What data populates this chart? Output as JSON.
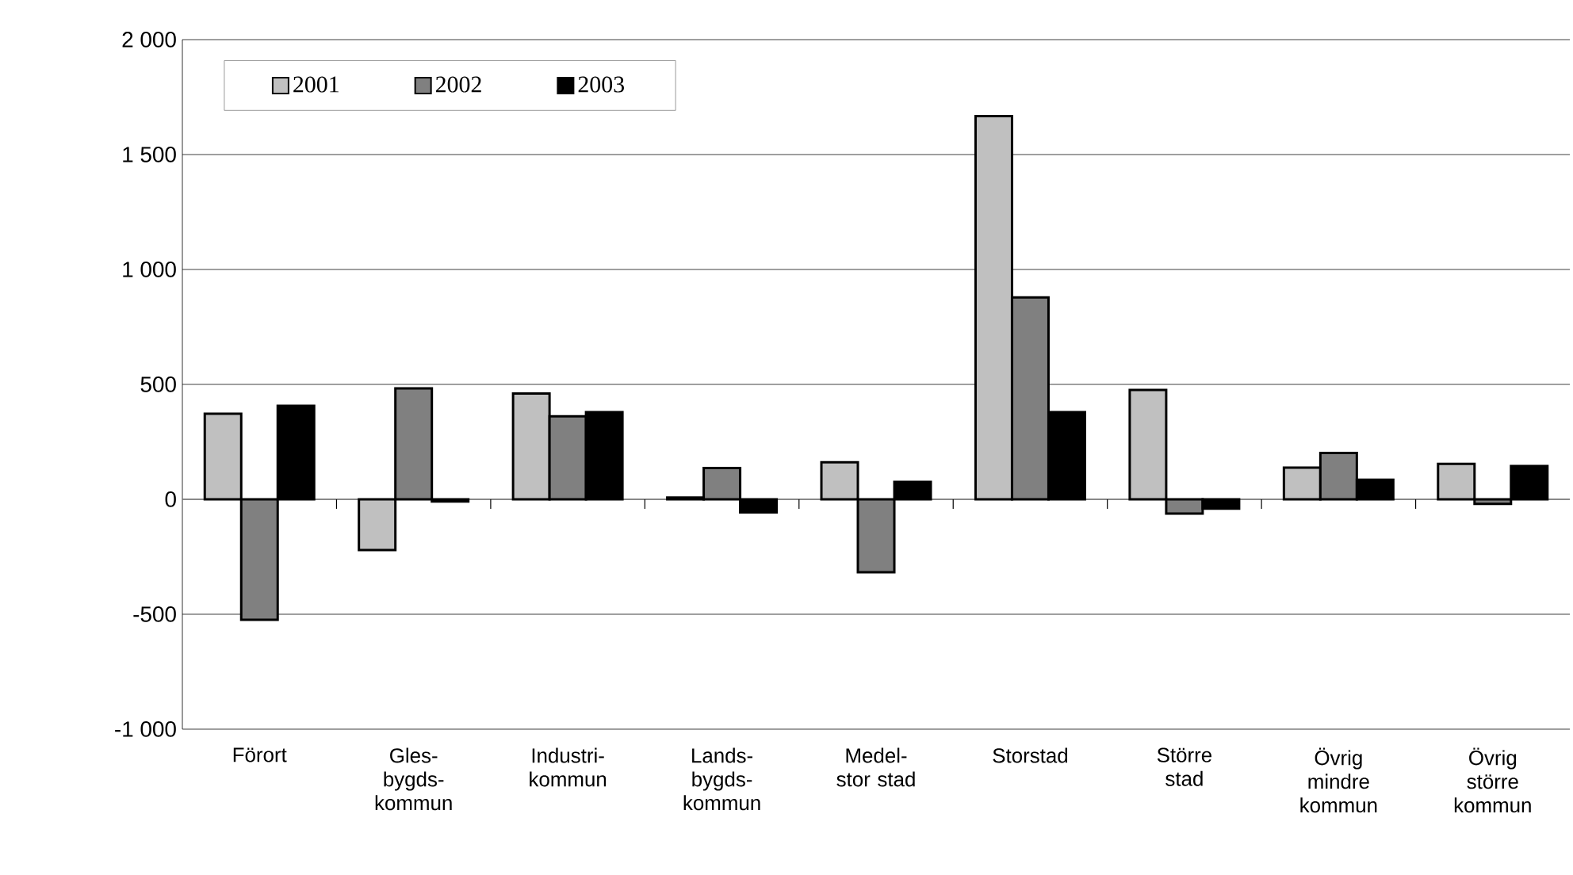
{
  "chart_data": {
    "type": "bar",
    "categories": [
      "Förort",
      "Gles- bygds- kommun",
      "Industri- kommun",
      "Lands- bygds- kommun",
      "Medel- stor stad",
      "Storstad",
      "Större stad",
      "Övrig mindre kommun",
      "Övrig större kommun"
    ],
    "series": [
      {
        "name": "2001",
        "color": "#c0c0c0",
        "values": [
          372,
          -221,
          460,
          8,
          161,
          1667,
          476,
          138,
          154
        ]
      },
      {
        "name": "2002",
        "color": "#808080",
        "values": [
          -524,
          483,
          361,
          136,
          -317,
          878,
          -62,
          202,
          -20
        ]
      },
      {
        "name": "2003",
        "color": "#000000",
        "values": [
          407,
          -10,
          379,
          -57,
          76,
          379,
          -41,
          85,
          145
        ]
      }
    ],
    "ylim": [
      -1000,
      2000
    ],
    "yticks": [
      {
        "value": -1000,
        "label": "-1 000"
      },
      -500,
      0,
      500,
      {
        "value": 1000,
        "label": "1 000"
      },
      {
        "value": 1500,
        "label": "1 500"
      },
      {
        "value": 2000,
        "label": "2 000"
      }
    ],
    "grid": "y",
    "legend": "top left"
  }
}
